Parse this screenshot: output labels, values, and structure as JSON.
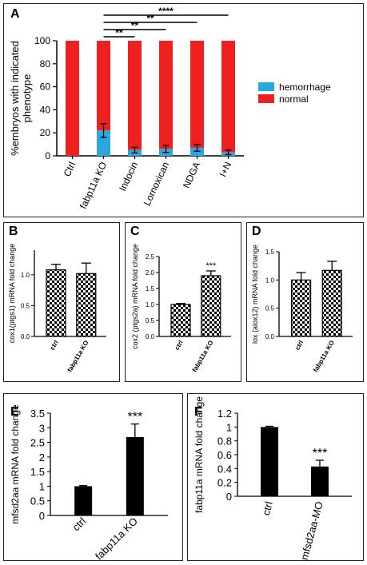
{
  "chart_data": [
    {
      "panel": "A",
      "type": "bar",
      "stacked": true,
      "ylabel": "%embryos with indicated phenotype",
      "ylim": [
        0,
        100
      ],
      "yticks": [
        0,
        20,
        40,
        60,
        80,
        100
      ],
      "categories": [
        "Ctrl",
        "fabp11a KO",
        "Indocin",
        "Lornoxican",
        "NDGA",
        "I+N"
      ],
      "series": [
        {
          "name": "hemorrhage",
          "color": "#29a8e0",
          "values": [
            0,
            22,
            5,
            6,
            7,
            3
          ],
          "errors": [
            0,
            6,
            2.5,
            3,
            3,
            2
          ]
        },
        {
          "name": "normal",
          "color": "#ee2020",
          "values": [
            100,
            78,
            95,
            94,
            93,
            97
          ]
        }
      ],
      "significance": [
        {
          "from": 1,
          "to": 2,
          "label": "**"
        },
        {
          "from": 1,
          "to": 3,
          "label": "**"
        },
        {
          "from": 1,
          "to": 4,
          "label": "**"
        },
        {
          "from": 1,
          "to": 5,
          "label": "****"
        }
      ],
      "legend_position": "right"
    },
    {
      "panel": "B",
      "type": "bar",
      "ylabel": "cox1(ptgs1) mRNA fold change",
      "categories": [
        "ctrl",
        "fabp11a KO"
      ],
      "values": [
        1.08,
        1.02
      ],
      "errors": [
        0.09,
        0.17
      ],
      "ylim": [
        0,
        1.4
      ],
      "yticks": [
        "0.0",
        "0.5",
        "1.0"
      ],
      "annotations": [
        "",
        ""
      ]
    },
    {
      "panel": "C",
      "type": "bar",
      "ylabel": "cox2 (ptgs2a) mRNA fold change",
      "categories": [
        "ctrl",
        "fabp11a KO"
      ],
      "values": [
        1.0,
        1.9
      ],
      "errors": [
        0.03,
        0.15
      ],
      "ylim": [
        0,
        2.5
      ],
      "yticks": [
        "0.0",
        "0.5",
        "1.0",
        "1.5",
        "2.0",
        "2.5"
      ],
      "annotations": [
        "",
        "***"
      ]
    },
    {
      "panel": "D",
      "type": "bar",
      "ylabel": "lox (alox12) mRNA fold change",
      "categories": [
        "ctrl",
        "fabp11a KO"
      ],
      "values": [
        1.0,
        1.17
      ],
      "errors": [
        0.13,
        0.16
      ],
      "ylim": [
        0,
        1.5
      ],
      "yticks": [
        "0.0",
        "0.5",
        "1.0",
        "1.5"
      ],
      "annotations": [
        "",
        ""
      ]
    },
    {
      "panel": "E",
      "type": "bar",
      "ylabel": "mfsd2aa mRNA fold change",
      "categories": [
        "ctrl",
        "fabp11a KO"
      ],
      "values": [
        1.0,
        2.68
      ],
      "errors": [
        0.02,
        0.45
      ],
      "ylim": [
        0,
        3.5
      ],
      "yticks": [
        "0",
        "0.5",
        "1",
        "1.5",
        "2",
        "2.5",
        "3",
        "3.5"
      ],
      "annotations": [
        "",
        "***"
      ]
    },
    {
      "panel": "F",
      "type": "bar",
      "ylabel": "fabp11a mRNA fold change",
      "categories": [
        "ctrl",
        "mfsd2aa-MO"
      ],
      "values": [
        1.0,
        0.43
      ],
      "errors": [
        0.01,
        0.09
      ],
      "ylim": [
        0,
        1.2
      ],
      "yticks": [
        "0",
        "0.2",
        "0.4",
        "0.6",
        "0.8",
        "1",
        "1.2"
      ],
      "annotations": [
        "",
        "***"
      ]
    }
  ]
}
